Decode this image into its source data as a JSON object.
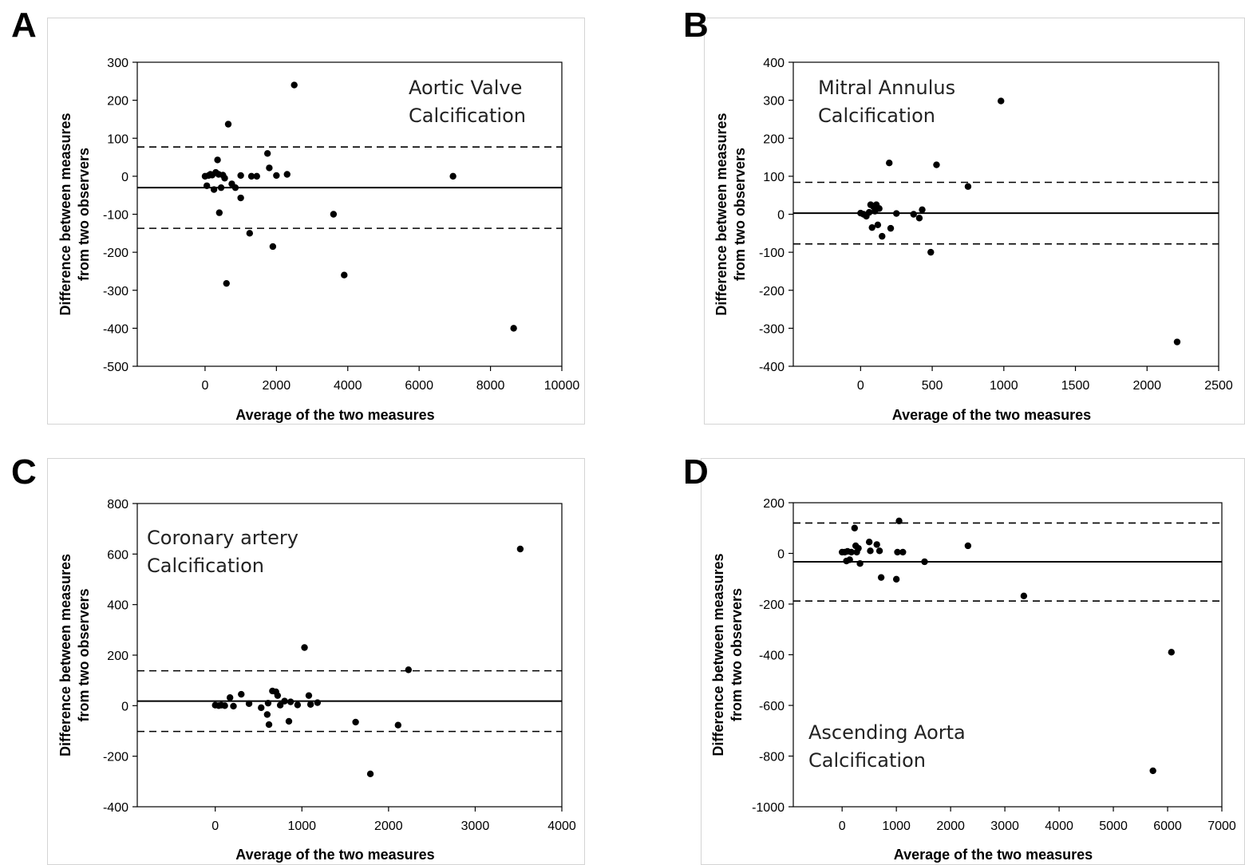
{
  "chart_data": [
    {
      "panel": "A",
      "type": "scatter",
      "title_lines": [
        "Aortic Valve",
        "Calcification"
      ],
      "xlabel": "Average of the two measures",
      "ylabel_lines": [
        "Difference between measures",
        "from two observers"
      ],
      "xlim": [
        -1900,
        10000
      ],
      "ylim": [
        -500,
        300
      ],
      "xticks": [
        0,
        2000,
        4000,
        6000,
        8000,
        10000
      ],
      "yticks": [
        300,
        200,
        100,
        0,
        -100,
        -200,
        -300,
        -400,
        -500
      ],
      "mean_line": -30,
      "limits_of_agreement": [
        77,
        -137
      ],
      "points": [
        [
          0,
          0
        ],
        [
          50,
          -25
        ],
        [
          100,
          2
        ],
        [
          150,
          5
        ],
        [
          200,
          3
        ],
        [
          250,
          -35
        ],
        [
          300,
          10
        ],
        [
          350,
          43
        ],
        [
          380,
          5
        ],
        [
          400,
          -96
        ],
        [
          450,
          -30
        ],
        [
          500,
          3
        ],
        [
          550,
          -5
        ],
        [
          600,
          -282
        ],
        [
          650,
          137
        ],
        [
          750,
          -20
        ],
        [
          850,
          -30
        ],
        [
          1000,
          2
        ],
        [
          1000,
          -57
        ],
        [
          1250,
          -150
        ],
        [
          1300,
          0
        ],
        [
          1450,
          0
        ],
        [
          1750,
          60
        ],
        [
          1800,
          22
        ],
        [
          1900,
          -185
        ],
        [
          2000,
          2
        ],
        [
          2300,
          5
        ],
        [
          2500,
          240
        ],
        [
          3600,
          -100
        ],
        [
          3900,
          -260
        ],
        [
          6950,
          0
        ],
        [
          8650,
          -400
        ]
      ]
    },
    {
      "panel": "B",
      "type": "scatter",
      "title_lines": [
        "Mitral Annulus",
        "Calcification"
      ],
      "xlabel": "Average of the two measures",
      "ylabel_lines": [
        "Difference between measures",
        "from two observers"
      ],
      "xlim": [
        -470,
        2500
      ],
      "ylim": [
        -400,
        400
      ],
      "xticks": [
        0,
        500,
        1000,
        1500,
        2000,
        2500
      ],
      "yticks": [
        400,
        300,
        200,
        100,
        0,
        -100,
        -200,
        -300,
        -400
      ],
      "mean_line": 3,
      "limits_of_agreement": [
        84,
        -78
      ],
      "points": [
        [
          0,
          3
        ],
        [
          20,
          0
        ],
        [
          40,
          -5
        ],
        [
          60,
          5
        ],
        [
          70,
          25
        ],
        [
          80,
          -35
        ],
        [
          90,
          20
        ],
        [
          100,
          8
        ],
        [
          110,
          25
        ],
        [
          120,
          -28
        ],
        [
          130,
          15
        ],
        [
          150,
          -58
        ],
        [
          200,
          135
        ],
        [
          210,
          -37
        ],
        [
          250,
          2
        ],
        [
          370,
          0
        ],
        [
          410,
          -10
        ],
        [
          430,
          12
        ],
        [
          490,
          -100
        ],
        [
          530,
          130
        ],
        [
          750,
          73
        ],
        [
          980,
          298
        ],
        [
          2210,
          -336
        ]
      ]
    },
    {
      "panel": "C",
      "type": "scatter",
      "title_lines": [
        "Coronary artery",
        "Calcification"
      ],
      "xlabel": "Average of the two measures",
      "ylabel_lines": [
        "Difference between measures",
        "from two observers"
      ],
      "xlim": [
        -900,
        4000
      ],
      "ylim": [
        -400,
        800
      ],
      "xticks": [
        0,
        1000,
        2000,
        3000,
        4000
      ],
      "yticks": [
        800,
        600,
        400,
        200,
        0,
        -200,
        -400
      ],
      "mean_line": 18,
      "limits_of_agreement": [
        138,
        -102
      ],
      "points": [
        [
          0,
          2
        ],
        [
          40,
          0
        ],
        [
          70,
          2
        ],
        [
          110,
          0
        ],
        [
          170,
          32
        ],
        [
          210,
          -2
        ],
        [
          300,
          45
        ],
        [
          390,
          8
        ],
        [
          530,
          -8
        ],
        [
          600,
          -35
        ],
        [
          610,
          10
        ],
        [
          620,
          -75
        ],
        [
          660,
          58
        ],
        [
          700,
          55
        ],
        [
          720,
          40
        ],
        [
          750,
          2
        ],
        [
          800,
          18
        ],
        [
          850,
          -62
        ],
        [
          870,
          15
        ],
        [
          950,
          3
        ],
        [
          1030,
          230
        ],
        [
          1080,
          40
        ],
        [
          1100,
          5
        ],
        [
          1180,
          12
        ],
        [
          1620,
          -65
        ],
        [
          1790,
          -270
        ],
        [
          2110,
          -77
        ],
        [
          2230,
          142
        ],
        [
          3520,
          620
        ]
      ]
    },
    {
      "panel": "D",
      "type": "scatter",
      "title_lines": [
        "Ascending Aorta",
        "Calcification"
      ],
      "xlabel": "Average of the two measures",
      "ylabel_lines": [
        "Difference between measures",
        "from two observers"
      ],
      "xlim": [
        -900,
        7000
      ],
      "ylim": [
        -1000,
        200
      ],
      "xticks": [
        0,
        1000,
        2000,
        3000,
        4000,
        5000,
        6000,
        7000
      ],
      "yticks": [
        200,
        0,
        -200,
        -400,
        -600,
        -800,
        -1000
      ],
      "mean_line": -33,
      "limits_of_agreement": [
        120,
        -188
      ],
      "points": [
        [
          0,
          5
        ],
        [
          50,
          5
        ],
        [
          80,
          -30
        ],
        [
          100,
          8
        ],
        [
          140,
          -25
        ],
        [
          170,
          5
        ],
        [
          230,
          100
        ],
        [
          250,
          30
        ],
        [
          270,
          5
        ],
        [
          300,
          20
        ],
        [
          330,
          -40
        ],
        [
          500,
          45
        ],
        [
          520,
          10
        ],
        [
          640,
          35
        ],
        [
          690,
          10
        ],
        [
          720,
          -95
        ],
        [
          1000,
          -102
        ],
        [
          1020,
          5
        ],
        [
          1050,
          128
        ],
        [
          1120,
          5
        ],
        [
          1520,
          -33
        ],
        [
          2320,
          30
        ],
        [
          3350,
          -168
        ],
        [
          5730,
          -858
        ],
        [
          6070,
          -390
        ]
      ]
    }
  ]
}
